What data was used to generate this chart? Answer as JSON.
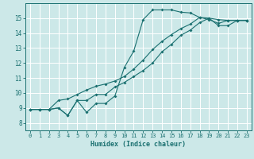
{
  "xlabel": "Humidex (Indice chaleur)",
  "bg_color": "#cce8e8",
  "line_color": "#1a7070",
  "grid_color": "#ffffff",
  "xlim": [
    -0.5,
    23.5
  ],
  "ylim": [
    7.5,
    16.0
  ],
  "xticks": [
    0,
    1,
    2,
    3,
    4,
    5,
    6,
    7,
    8,
    9,
    10,
    11,
    12,
    13,
    14,
    15,
    16,
    17,
    18,
    19,
    20,
    21,
    22,
    23
  ],
  "yticks": [
    8,
    9,
    10,
    11,
    12,
    13,
    14,
    15
  ],
  "curve1_x": [
    0,
    1,
    2,
    3,
    4,
    5,
    6,
    7,
    8,
    9,
    10,
    11,
    12,
    13,
    14,
    15,
    16,
    17,
    18,
    19,
    20,
    21,
    22,
    23
  ],
  "curve1_y": [
    8.9,
    8.9,
    8.9,
    9.0,
    8.5,
    9.5,
    8.7,
    9.3,
    9.3,
    9.8,
    11.7,
    12.8,
    14.9,
    15.55,
    15.55,
    15.55,
    15.4,
    15.35,
    15.05,
    15.0,
    14.9,
    14.85,
    14.85,
    14.85
  ],
  "curve2_x": [
    0,
    1,
    2,
    3,
    4,
    5,
    6,
    7,
    8,
    9,
    10,
    11,
    12,
    13,
    14,
    15,
    16,
    17,
    18,
    19,
    20,
    21,
    22,
    23
  ],
  "curve2_y": [
    8.9,
    8.9,
    8.9,
    9.5,
    9.6,
    9.9,
    10.2,
    10.45,
    10.6,
    10.8,
    11.1,
    11.6,
    12.2,
    12.9,
    13.45,
    13.9,
    14.3,
    14.6,
    15.05,
    14.9,
    14.65,
    14.85,
    14.85,
    14.85
  ],
  "curve3_x": [
    0,
    1,
    2,
    3,
    4,
    5,
    6,
    7,
    8,
    9,
    10,
    11,
    12,
    13,
    14,
    15,
    16,
    17,
    18,
    19,
    20,
    21,
    22,
    23
  ],
  "curve3_y": [
    8.9,
    8.9,
    8.9,
    9.0,
    8.5,
    9.5,
    9.5,
    9.9,
    9.9,
    10.4,
    10.7,
    11.1,
    11.5,
    12.0,
    12.75,
    13.25,
    13.85,
    14.2,
    14.7,
    15.0,
    14.5,
    14.5,
    14.85,
    14.85
  ]
}
